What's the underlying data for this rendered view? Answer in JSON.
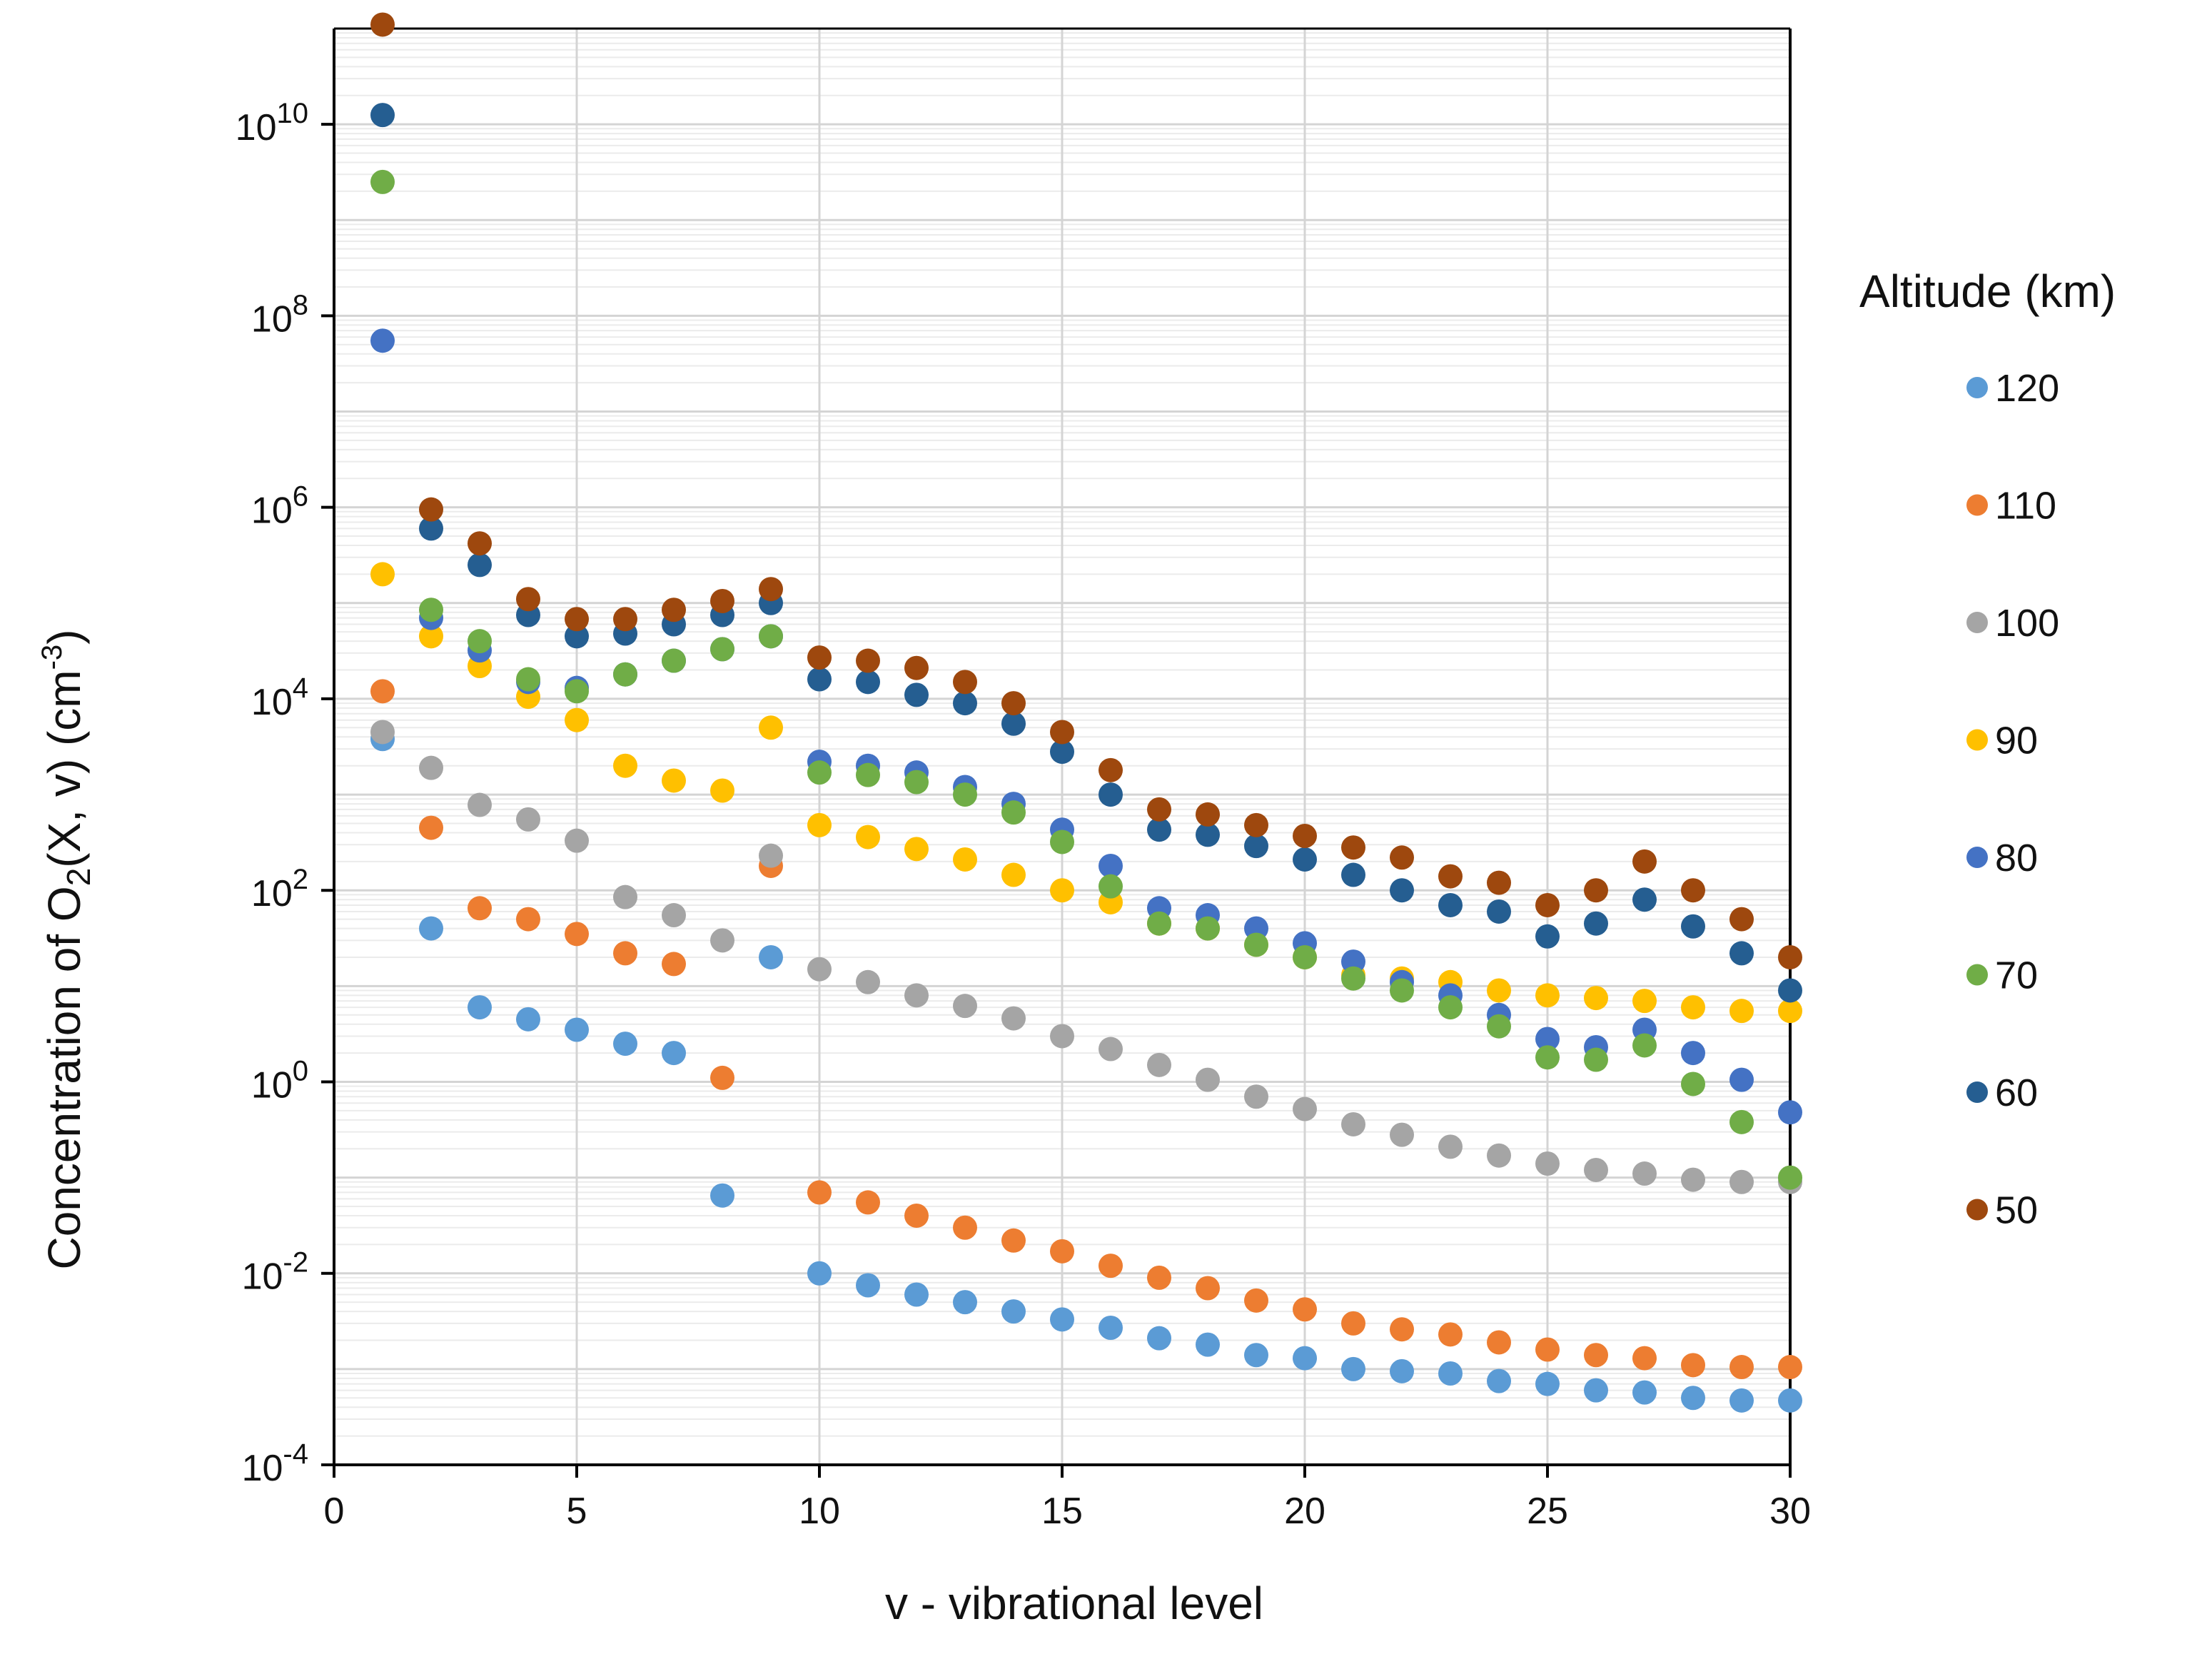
{
  "chart_data": {
    "type": "scatter",
    "title": "",
    "xlabel": "v - vibrational level",
    "ylabel": {
      "parts": [
        "Concentration of O",
        "2",
        "(X, v) (cm",
        "-3",
        ")"
      ]
    },
    "xlim": [
      0,
      30
    ],
    "xticks": [
      0,
      5,
      10,
      15,
      20,
      25,
      30
    ],
    "ylim_log10": [
      -4,
      11
    ],
    "yscale": "log",
    "yticks": [
      {
        "base": "10",
        "exp": "-4",
        "log": -4
      },
      {
        "base": "10",
        "exp": "-2",
        "log": -2
      },
      {
        "base": "10",
        "exp": "0",
        "log": 0
      },
      {
        "base": "10",
        "exp": "2",
        "log": 2
      },
      {
        "base": "10",
        "exp": "4",
        "log": 4
      },
      {
        "base": "10",
        "exp": "6",
        "log": 6
      },
      {
        "base": "10",
        "exp": "8",
        "log": 8
      },
      {
        "base": "10",
        "exp": "10",
        "log": 10
      }
    ],
    "grid": true,
    "legend_title": "Altitude (km)",
    "legend_position": "right",
    "series": [
      {
        "name": "120",
        "color": "#5B9BD5",
        "points": [
          [
            1,
            3800.0
          ],
          [
            2,
            40
          ],
          [
            3,
            6
          ],
          [
            4,
            4.5
          ],
          [
            5,
            3.5
          ],
          [
            6,
            2.5
          ],
          [
            7,
            2
          ],
          [
            8,
            0.065
          ],
          [
            9,
            20
          ],
          [
            10,
            0.01
          ],
          [
            11,
            0.0075
          ],
          [
            12,
            0.006
          ],
          [
            13,
            0.005
          ],
          [
            14,
            0.004
          ],
          [
            15,
            0.0033
          ],
          [
            16,
            0.0027
          ],
          [
            17,
            0.0021
          ],
          [
            18,
            0.0018
          ],
          [
            19,
            0.0014
          ],
          [
            20,
            0.0013
          ],
          [
            21,
            0.001
          ],
          [
            22,
            0.00095
          ],
          [
            23,
            0.0009
          ],
          [
            24,
            0.00075
          ],
          [
            25,
            0.0007
          ],
          [
            26,
            0.0006
          ],
          [
            27,
            0.00057
          ],
          [
            28,
            0.0005
          ],
          [
            29,
            0.00047
          ],
          [
            30,
            0.00047
          ]
        ]
      },
      {
        "name": "110",
        "color": "#ED7D31",
        "points": [
          [
            1,
            12000.0
          ],
          [
            2,
            450
          ],
          [
            3,
            65
          ],
          [
            4,
            50
          ],
          [
            5,
            35
          ],
          [
            6,
            22
          ],
          [
            7,
            17
          ],
          [
            8,
            1.1
          ],
          [
            9,
            180
          ],
          [
            10,
            0.07
          ],
          [
            11,
            0.055
          ],
          [
            12,
            0.04
          ],
          [
            13,
            0.03
          ],
          [
            14,
            0.022
          ],
          [
            15,
            0.017
          ],
          [
            16,
            0.012
          ],
          [
            17,
            0.009
          ],
          [
            18,
            0.007
          ],
          [
            19,
            0.0052
          ],
          [
            20,
            0.0042
          ],
          [
            21,
            0.003
          ],
          [
            22,
            0.0026
          ],
          [
            23,
            0.0023
          ],
          [
            24,
            0.0019
          ],
          [
            25,
            0.0016
          ],
          [
            26,
            0.0014
          ],
          [
            27,
            0.0013
          ],
          [
            28,
            0.0011
          ],
          [
            29,
            0.00105
          ],
          [
            30,
            0.00105
          ]
        ]
      },
      {
        "name": "100",
        "color": "#A5A5A5",
        "points": [
          [
            1,
            4500.0
          ],
          [
            2,
            1900.0
          ],
          [
            3,
            780
          ],
          [
            4,
            550
          ],
          [
            5,
            330
          ],
          [
            6,
            85
          ],
          [
            7,
            55
          ],
          [
            8,
            30
          ],
          [
            9,
            230
          ],
          [
            10,
            15
          ],
          [
            11,
            11
          ],
          [
            12,
            8
          ],
          [
            13,
            6.2
          ],
          [
            14,
            4.6
          ],
          [
            15,
            3
          ],
          [
            16,
            2.2
          ],
          [
            17,
            1.5
          ],
          [
            18,
            1.05
          ],
          [
            19,
            0.7
          ],
          [
            20,
            0.52
          ],
          [
            21,
            0.36
          ],
          [
            22,
            0.28
          ],
          [
            23,
            0.21
          ],
          [
            24,
            0.17
          ],
          [
            25,
            0.14
          ],
          [
            26,
            0.12
          ],
          [
            27,
            0.11
          ],
          [
            28,
            0.095
          ],
          [
            29,
            0.09
          ],
          [
            30,
            0.09
          ]
        ]
      },
      {
        "name": "90",
        "color": "#FFC000",
        "points": [
          [
            1,
            200000.0
          ],
          [
            2,
            45000.0
          ],
          [
            3,
            22000.0
          ],
          [
            4,
            10500.0
          ],
          [
            5,
            6000.0
          ],
          [
            6,
            2000.0
          ],
          [
            7,
            1400.0
          ],
          [
            8,
            1100.0
          ],
          [
            9,
            5000.0
          ],
          [
            10,
            480
          ],
          [
            11,
            360
          ],
          [
            12,
            270
          ],
          [
            13,
            210
          ],
          [
            14,
            145
          ],
          [
            15,
            100
          ],
          [
            16,
            75
          ],
          [
            17,
            45
          ],
          [
            18,
            40
          ],
          [
            19,
            27
          ],
          [
            20,
            20
          ],
          [
            21,
            13
          ],
          [
            22,
            12
          ],
          [
            23,
            11
          ],
          [
            24,
            9
          ],
          [
            25,
            8
          ],
          [
            26,
            7.5
          ],
          [
            27,
            7
          ],
          [
            28,
            6
          ],
          [
            29,
            5.5
          ],
          [
            30,
            5.5
          ]
        ]
      },
      {
        "name": "80",
        "color": "#4472C4",
        "points": [
          [
            1,
            55000000.0
          ],
          [
            2,
            70000.0
          ],
          [
            3,
            32000.0
          ],
          [
            4,
            15000.0
          ],
          [
            5,
            13000.0
          ],
          [
            6,
            18000.0
          ],
          [
            7,
            25000.0
          ],
          [
            8,
            33000.0
          ],
          [
            9,
            45000.0
          ],
          [
            10,
            2200.0
          ],
          [
            11,
            2000.0
          ],
          [
            12,
            1700.0
          ],
          [
            13,
            1200.0
          ],
          [
            14,
            800
          ],
          [
            15,
            430
          ],
          [
            16,
            180
          ],
          [
            17,
            65
          ],
          [
            18,
            55
          ],
          [
            19,
            40
          ],
          [
            20,
            28
          ],
          [
            21,
            18
          ],
          [
            22,
            11
          ],
          [
            23,
            8
          ],
          [
            24,
            5
          ],
          [
            25,
            2.8
          ],
          [
            26,
            2.3
          ],
          [
            27,
            3.5
          ],
          [
            28,
            2
          ],
          [
            29,
            1.05
          ],
          [
            30,
            0.48
          ]
        ]
      },
      {
        "name": "70",
        "color": "#70AD47",
        "points": [
          [
            1,
            2500000000.0
          ],
          [
            2,
            85000.0
          ],
          [
            3,
            40000.0
          ],
          [
            4,
            16000.0
          ],
          [
            5,
            12000.0
          ],
          [
            6,
            18000.0
          ],
          [
            7,
            25000.0
          ],
          [
            8,
            33000.0
          ],
          [
            9,
            45000.0
          ],
          [
            10,
            1700.0
          ],
          [
            11,
            1600.0
          ],
          [
            12,
            1350.0
          ],
          [
            13,
            1000.0
          ],
          [
            14,
            650
          ],
          [
            15,
            320
          ],
          [
            16,
            110
          ],
          [
            17,
            45
          ],
          [
            18,
            40
          ],
          [
            19,
            27
          ],
          [
            20,
            20
          ],
          [
            21,
            12
          ],
          [
            22,
            9
          ],
          [
            23,
            6
          ],
          [
            24,
            3.8
          ],
          [
            25,
            1.8
          ],
          [
            26,
            1.7
          ],
          [
            27,
            2.4
          ],
          [
            28,
            0.95
          ],
          [
            29,
            0.38
          ],
          [
            30,
            0.1
          ]
        ]
      },
      {
        "name": "60",
        "color": "#255E91",
        "points": [
          [
            1,
            12500000000.0
          ],
          [
            2,
            600000.0
          ],
          [
            3,
            250000.0
          ],
          [
            4,
            75000.0
          ],
          [
            5,
            45000.0
          ],
          [
            6,
            48000.0
          ],
          [
            7,
            60000.0
          ],
          [
            8,
            75000.0
          ],
          [
            9,
            100000.0
          ],
          [
            10,
            16000.0
          ],
          [
            11,
            15000.0
          ],
          [
            12,
            11000.0
          ],
          [
            13,
            9000.0
          ],
          [
            14,
            5500.0
          ],
          [
            15,
            2800.0
          ],
          [
            16,
            1000.0
          ],
          [
            17,
            430
          ],
          [
            18,
            380
          ],
          [
            19,
            290
          ],
          [
            20,
            210
          ],
          [
            21,
            145
          ],
          [
            22,
            100
          ],
          [
            23,
            70
          ],
          [
            24,
            60
          ],
          [
            25,
            33
          ],
          [
            26,
            45
          ],
          [
            27,
            80
          ],
          [
            28,
            42
          ],
          [
            29,
            22
          ],
          [
            30,
            9
          ]
        ]
      },
      {
        "name": "50",
        "color": "#9E480E",
        "points": [
          [
            1,
            110000000000.0
          ],
          [
            2,
            950000.0
          ],
          [
            3,
            420000.0
          ],
          [
            4,
            110000.0
          ],
          [
            5,
            68000.0
          ],
          [
            6,
            68000.0
          ],
          [
            7,
            85000.0
          ],
          [
            8,
            105000.0
          ],
          [
            9,
            140000.0
          ],
          [
            10,
            27000.0
          ],
          [
            11,
            25000.0
          ],
          [
            12,
            21000.0
          ],
          [
            13,
            15000.0
          ],
          [
            14,
            9000.0
          ],
          [
            15,
            4500.0
          ],
          [
            16,
            1800.0
          ],
          [
            17,
            700
          ],
          [
            18,
            620
          ],
          [
            19,
            480
          ],
          [
            20,
            370
          ],
          [
            21,
            280
          ],
          [
            22,
            220
          ],
          [
            23,
            140
          ],
          [
            24,
            120
          ],
          [
            25,
            70
          ],
          [
            26,
            100
          ],
          [
            27,
            200
          ],
          [
            28,
            100
          ],
          [
            29,
            50
          ],
          [
            30,
            20
          ]
        ]
      }
    ]
  }
}
